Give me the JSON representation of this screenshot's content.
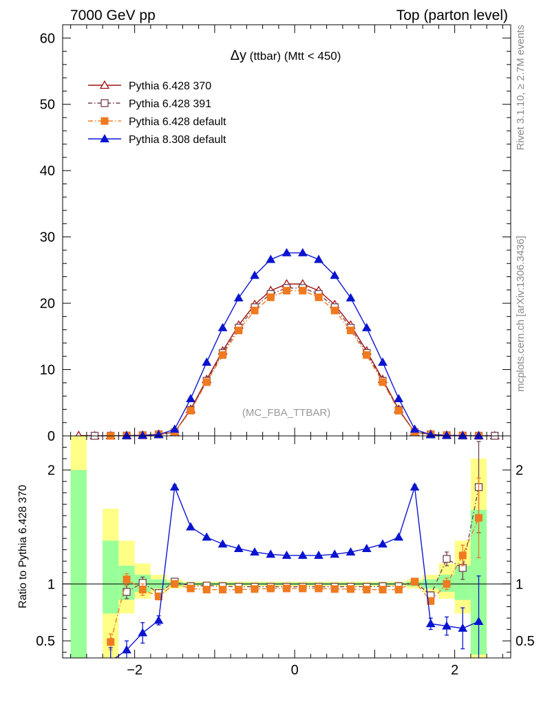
{
  "header": {
    "left": "7000 GeV pp",
    "right": "Top (parton level)"
  },
  "side_labels": {
    "rivet": "Rivet 3.1.10, ≥ 2.7M events",
    "mcplots": "mcplots.cern.ch [arXiv:1306.3436]"
  },
  "chart_data": [
    {
      "type": "line",
      "title_main": "Δy",
      "title_rest": " (ttbar) (Mtt < 450)",
      "annotation": "(MC_FBA_TTBAR)",
      "xlim": [
        -2.9,
        2.7
      ],
      "ylim": [
        0,
        62
      ],
      "yticks": [
        0,
        10,
        20,
        30,
        40,
        50,
        60
      ],
      "ytick_labels": [
        "0",
        "10",
        "20",
        "30",
        "40",
        "50",
        "60"
      ],
      "legend_position": "top-left",
      "x": [
        -2.7,
        -2.5,
        -2.3,
        -2.1,
        -1.9,
        -1.7,
        -1.5,
        -1.3,
        -1.1,
        -0.9,
        -0.7,
        -0.5,
        -0.3,
        -0.1,
        0.1,
        0.3,
        0.5,
        0.7,
        0.9,
        1.1,
        1.3,
        1.5,
        1.7,
        1.9,
        2.1,
        2.3,
        2.5
      ],
      "series": [
        {
          "name": "Pythia 6.428 370",
          "color": "#a01010",
          "marker": "triangle-open",
          "dash": "",
          "values": [
            0.05,
            0.01,
            0.02,
            0.05,
            0.1,
            0.25,
            0.55,
            4.0,
            8.5,
            12.8,
            16.7,
            19.8,
            21.9,
            22.9,
            22.9,
            21.9,
            19.8,
            16.7,
            12.8,
            8.5,
            4.0,
            0.55,
            0.25,
            0.1,
            0.05,
            0.02,
            0.01
          ]
        },
        {
          "name": "Pythia 6.428 391",
          "color": "#70404f",
          "marker": "square-open",
          "dash": "6,3,1.5,3",
          "values": [
            null,
            0.01,
            0.02,
            0.05,
            0.1,
            0.23,
            0.56,
            3.9,
            8.3,
            12.5,
            16.3,
            19.4,
            21.4,
            22.3,
            22.3,
            21.4,
            19.4,
            16.3,
            12.5,
            8.3,
            3.9,
            0.56,
            0.23,
            0.1,
            0.05,
            0.02,
            0.01
          ]
        },
        {
          "name": "Pythia 6.428 default",
          "color": "#f07a20",
          "marker": "square-filled",
          "dash": "7,3,1.5,3",
          "values": [
            null,
            null,
            0.01,
            0.05,
            0.09,
            0.22,
            0.55,
            3.8,
            8.1,
            12.2,
            15.9,
            18.9,
            20.9,
            21.9,
            21.9,
            20.9,
            18.9,
            15.9,
            12.2,
            8.1,
            3.8,
            0.55,
            0.22,
            0.1,
            0.05,
            0.02,
            null
          ]
        },
        {
          "name": "Pythia 8.308 default",
          "color": "#0a14d0",
          "marker": "triangle-filled",
          "dash": "",
          "values": [
            null,
            null,
            null,
            0.02,
            0.06,
            0.17,
            1.0,
            5.6,
            11.1,
            16.3,
            20.8,
            24.2,
            26.6,
            27.6,
            27.6,
            26.6,
            24.2,
            20.8,
            16.3,
            11.1,
            5.6,
            1.0,
            0.16,
            0.06,
            0.03,
            0.01,
            null
          ]
        }
      ]
    },
    {
      "type": "line",
      "ylabel": "Ratio to Pythia 6.428 370",
      "xlim": [
        -2.9,
        2.7
      ],
      "ylim": [
        0.35,
        2.3
      ],
      "yticks": [
        0.5,
        1,
        2
      ],
      "ytick_labels": [
        "0.5",
        "1",
        "2"
      ],
      "xticks": [
        -2,
        0,
        2
      ],
      "xtick_labels": [
        "−2",
        "0",
        "2"
      ],
      "reference_line": 1,
      "band_bins": [
        {
          "x0": -2.8,
          "x1": -2.6,
          "green": [
            0.35,
            2.0
          ],
          "yellow": [
            0.35,
            2.3
          ]
        },
        {
          "x0": -2.4,
          "x1": -2.2,
          "green": [
            0.74,
            1.38
          ],
          "yellow": [
            0.35,
            1.66
          ]
        },
        {
          "x0": -2.2,
          "x1": -2.0,
          "green": [
            0.86,
            1.16
          ],
          "yellow": [
            0.74,
            1.38
          ]
        },
        {
          "x0": -2.0,
          "x1": -1.8,
          "green": [
            0.93,
            1.08
          ],
          "yellow": [
            0.87,
            1.18
          ]
        },
        {
          "x0": -1.8,
          "x1": -1.6,
          "green": [
            0.96,
            1.04
          ],
          "yellow": [
            0.92,
            1.08
          ]
        },
        {
          "x0": -1.6,
          "x1": -1.4,
          "green": [
            0.98,
            1.02
          ],
          "yellow": [
            0.96,
            1.04
          ]
        },
        {
          "x0": -1.4,
          "x1": 1.4,
          "green": [
            0.99,
            1.01
          ],
          "yellow": [
            0.98,
            1.02
          ]
        },
        {
          "x0": 1.4,
          "x1": 1.6,
          "green": [
            0.98,
            1.02
          ],
          "yellow": [
            0.96,
            1.04
          ]
        },
        {
          "x0": 1.6,
          "x1": 1.8,
          "green": [
            0.96,
            1.04
          ],
          "yellow": [
            0.92,
            1.08
          ]
        },
        {
          "x0": 1.8,
          "x1": 2.0,
          "green": [
            0.93,
            1.08
          ],
          "yellow": [
            0.87,
            1.18
          ]
        },
        {
          "x0": 2.0,
          "x1": 2.2,
          "green": [
            0.86,
            1.16
          ],
          "yellow": [
            0.74,
            1.38
          ]
        },
        {
          "x0": 2.2,
          "x1": 2.4,
          "green": [
            0.38,
            1.65
          ],
          "yellow": [
            0.35,
            2.1
          ]
        }
      ],
      "x": [
        -2.3,
        -2.1,
        -1.9,
        -1.7,
        -1.5,
        -1.3,
        -1.1,
        -0.9,
        -0.7,
        -0.5,
        -0.3,
        -0.1,
        0.1,
        0.3,
        0.5,
        0.7,
        0.9,
        1.1,
        1.3,
        1.5,
        1.7,
        1.9,
        2.1,
        2.3
      ],
      "series": [
        {
          "name": "Pythia 6.428 391",
          "color": "#70404f",
          "marker": "square-open",
          "dash": "6,3,1.5,3",
          "values": [
            null,
            0.93,
            1.01,
            0.92,
            1.02,
            0.98,
            0.985,
            0.98,
            0.975,
            0.975,
            0.975,
            0.975,
            0.975,
            0.975,
            0.975,
            0.975,
            0.975,
            0.98,
            0.98,
            1.02,
            0.9,
            1.22,
            1.14,
            1.85
          ],
          "err": [
            null,
            0.06,
            0.05,
            0.03,
            0.01,
            0.01,
            0.01,
            0.01,
            0.01,
            0.01,
            0.01,
            0.01,
            0.01,
            0.01,
            0.01,
            0.01,
            0.01,
            0.01,
            0.01,
            0.01,
            0.03,
            0.06,
            0.1,
            0.4
          ]
        },
        {
          "name": "Pythia 6.428 default",
          "color": "#f07a20",
          "marker": "square-filled",
          "dash": "7,3,1.5,3",
          "values": [
            0.49,
            1.04,
            0.95,
            0.89,
            1.0,
            0.96,
            0.95,
            0.95,
            0.95,
            0.955,
            0.96,
            0.96,
            0.96,
            0.96,
            0.955,
            0.955,
            0.95,
            0.95,
            0.95,
            1.02,
            0.85,
            1.0,
            1.25,
            1.58
          ],
          "err": [
            0.07,
            0.05,
            0.05,
            0.03,
            0.01,
            0.01,
            0.01,
            0.01,
            0.01,
            0.01,
            0.01,
            0.01,
            0.01,
            0.01,
            0.01,
            0.01,
            0.01,
            0.01,
            0.01,
            0.01,
            0.03,
            0.05,
            0.09,
            0.35
          ]
        },
        {
          "name": "Pythia 8.308 default",
          "color": "#0a14d0",
          "marker": "triangle-filled",
          "dash": "",
          "values": [
            0.32,
            0.42,
            0.57,
            0.68,
            1.85,
            1.5,
            1.41,
            1.35,
            1.31,
            1.28,
            1.26,
            1.25,
            1.25,
            1.25,
            1.26,
            1.28,
            1.31,
            1.35,
            1.41,
            1.85,
            0.65,
            0.63,
            0.61,
            0.67
          ],
          "err": [
            0.12,
            0.08,
            0.09,
            0.04,
            0.02,
            0.01,
            0.01,
            0.01,
            0.01,
            0.01,
            0.01,
            0.01,
            0.01,
            0.01,
            0.01,
            0.01,
            0.01,
            0.01,
            0.01,
            0.02,
            0.05,
            0.08,
            0.18,
            0.4
          ]
        }
      ]
    }
  ]
}
